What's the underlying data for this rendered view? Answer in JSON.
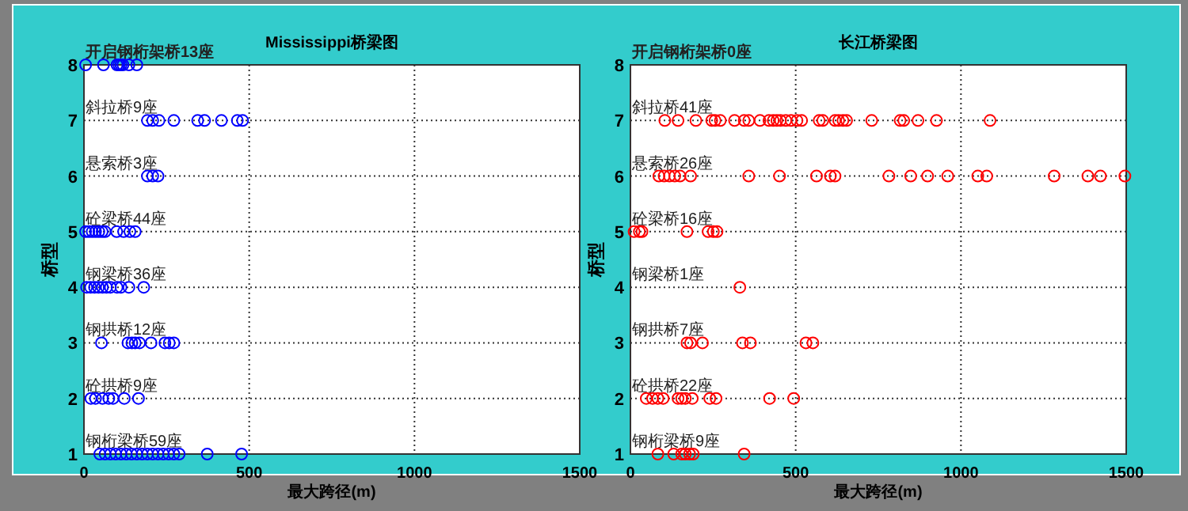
{
  "chart_data": [
    {
      "type": "scatter",
      "title": "Mississippi桥梁图",
      "xlabel": "最大跨径(m)",
      "ylabel": "桥型",
      "xlim": [
        0,
        1500
      ],
      "xticks": [
        0,
        500,
        1000,
        1500
      ],
      "ylim": [
        1,
        8
      ],
      "yticks": [
        1,
        2,
        3,
        4,
        5,
        6,
        7,
        8
      ],
      "grid": true,
      "marker": "circle",
      "annotations": [
        "开启钢桁架桥13座",
        "斜拉桥9座",
        "悬索桥3座",
        "砼梁桥44座",
        "钢梁桥36座",
        "钢拱桥12座",
        "砼拱桥9座",
        "钢桁梁桥59座"
      ],
      "series": [
        {
          "color": "#0000ff",
          "x": [
            5,
            59,
            100,
            106,
            112,
            118,
            136,
            160
          ],
          "values": [
            8,
            8,
            8,
            8,
            8,
            8,
            8,
            8
          ]
        },
        {
          "color": "#0000ff",
          "x": [
            192,
            208,
            227,
            272,
            344,
            365,
            416,
            464,
            480
          ],
          "values": [
            7,
            7,
            7,
            7,
            7,
            7,
            7,
            7,
            7
          ]
        },
        {
          "color": "#0000ff",
          "x": [
            192,
            208,
            224
          ],
          "values": [
            6,
            6,
            6
          ]
        },
        {
          "color": "#0000ff",
          "x": [
            5,
            15,
            25,
            35,
            45,
            55,
            64,
            99,
            120,
            139,
            155
          ],
          "values": [
            5,
            5,
            5,
            5,
            5,
            5,
            5,
            5,
            5,
            5,
            5
          ]
        },
        {
          "color": "#0000ff",
          "x": [
            8,
            20,
            32,
            44,
            56,
            68,
            80,
            100,
            112,
            136,
            181
          ],
          "values": [
            4,
            4,
            4,
            4,
            4,
            4,
            4,
            4,
            4,
            4,
            4
          ]
        },
        {
          "color": "#0000ff",
          "x": [
            53,
            133,
            145,
            155,
            168,
            203,
            245,
            258,
            272
          ],
          "values": [
            3,
            3,
            3,
            3,
            3,
            3,
            3,
            3,
            3
          ]
        },
        {
          "color": "#0000ff",
          "x": [
            21,
            35,
            56,
            75,
            88,
            122,
            165
          ],
          "values": [
            2,
            2,
            2,
            2,
            2,
            2,
            2
          ]
        },
        {
          "color": "#0000ff",
          "x": [
            48,
            64,
            80,
            96,
            112,
            128,
            144,
            160,
            176,
            192,
            208,
            224,
            240,
            256,
            272,
            288,
            373,
            477
          ],
          "values": [
            1,
            1,
            1,
            1,
            1,
            1,
            1,
            1,
            1,
            1,
            1,
            1,
            1,
            1,
            1,
            1,
            1,
            1
          ]
        }
      ]
    },
    {
      "type": "scatter",
      "title": "长江桥梁图",
      "xlabel": "最大跨径(m)",
      "ylabel": "桥型",
      "xlim": [
        0,
        1500
      ],
      "xticks": [
        0,
        500,
        1000,
        1500
      ],
      "ylim": [
        1,
        8
      ],
      "yticks": [
        1,
        2,
        3,
        4,
        5,
        6,
        7,
        8
      ],
      "grid": true,
      "marker": "circle",
      "annotations": [
        "开启钢桁架桥0座",
        "斜拉桥41座",
        "悬索桥26座",
        "砼梁桥16座",
        "钢梁桥1座",
        "钢拱桥7座",
        "砼拱桥22座",
        "钢桁梁桥9座"
      ],
      "series": [
        {
          "color": "#ff0000",
          "x": [
            104,
            144,
            198,
            246,
            256,
            272,
            315,
            344,
            358,
            392,
            419,
            432,
            443,
            454,
            470,
            486,
            504,
            518,
            571,
            582,
            619,
            630,
            643,
            654,
            730,
            816,
            827,
            870,
            926,
            1088
          ],
          "values": [
            7,
            7,
            7,
            7,
            7,
            7,
            7,
            7,
            7,
            7,
            7,
            7,
            7,
            7,
            7,
            7,
            7,
            7,
            7,
            7,
            7,
            7,
            7,
            7,
            7,
            7,
            7,
            7,
            7,
            7
          ]
        },
        {
          "color": "#ff0000",
          "x": [
            86,
            102,
            118,
            134,
            150,
            182,
            358,
            451,
            563,
            605,
            619,
            782,
            848,
            899,
            960,
            1051,
            1078,
            1282,
            1384,
            1422,
            1496
          ],
          "values": [
            6,
            6,
            6,
            6,
            6,
            6,
            6,
            6,
            6,
            6,
            6,
            6,
            6,
            6,
            6,
            6,
            6,
            6,
            6,
            6,
            6
          ]
        },
        {
          "color": "#ff0000",
          "x": [
            11,
            27,
            35,
            171,
            235,
            251,
            262
          ],
          "values": [
            5,
            5,
            5,
            5,
            5,
            5,
            5
          ]
        },
        {
          "color": "#ff0000",
          "x": [
            331
          ],
          "values": [
            4
          ]
        },
        {
          "color": "#ff0000",
          "x": [
            171,
            182,
            218,
            339,
            363,
            531,
            552
          ],
          "values": [
            3,
            3,
            3,
            3,
            3,
            3,
            3
          ]
        },
        {
          "color": "#ff0000",
          "x": [
            48,
            67,
            83,
            99,
            144,
            155,
            166,
            187,
            240,
            259,
            421,
            494
          ],
          "values": [
            2,
            2,
            2,
            2,
            2,
            2,
            2,
            2,
            2,
            2,
            2,
            2
          ]
        },
        {
          "color": "#ff0000",
          "x": [
            83,
            131,
            155,
            166,
            179,
            190,
            344
          ],
          "values": [
            1,
            1,
            1,
            1,
            1,
            1,
            1
          ]
        }
      ]
    }
  ]
}
